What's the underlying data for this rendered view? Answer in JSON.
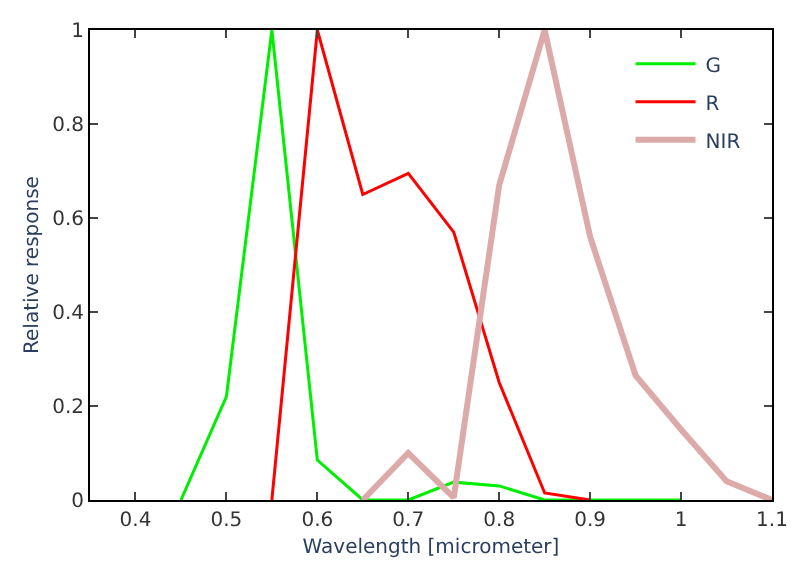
{
  "chart_data": {
    "type": "line",
    "xlabel": "Wavelength [micrometer]",
    "ylabel": "Relative response",
    "xlim": [
      0.35,
      1.1
    ],
    "ylim": [
      0,
      1
    ],
    "xticks": [
      0.4,
      0.5,
      0.6,
      0.7,
      0.8,
      0.9,
      1,
      1.1
    ],
    "yticks": [
      0,
      0.2,
      0.4,
      0.6,
      0.8,
      1
    ],
    "legend": "top right",
    "marker": "none",
    "line_style": "solid",
    "series": [
      {
        "name": "G",
        "color": "#00ee00",
        "x": [
          0.45,
          0.5,
          0.55,
          0.6,
          0.65,
          0.7,
          0.75,
          0.8,
          0.85,
          0.9,
          1.0
        ],
        "values": [
          0,
          0.22,
          1,
          0.085,
          0,
          0,
          0.038,
          0.03,
          0,
          0,
          0
        ]
      },
      {
        "name": "R",
        "color": "#ff0000",
        "x": [
          0.55,
          0.6,
          0.65,
          0.7,
          0.75,
          0.8,
          0.85,
          0.9
        ],
        "values": [
          0,
          1,
          0.65,
          0.695,
          0.57,
          0.25,
          0.015,
          0
        ]
      },
      {
        "name": "NIR",
        "color": "#ddaaaa",
        "x": [
          0.65,
          0.7,
          0.75,
          0.8,
          0.85,
          0.9,
          0.95,
          1.0,
          1.05,
          1.1
        ],
        "values": [
          0,
          0.1,
          0.005,
          0.67,
          1,
          0.56,
          0.265,
          0.15,
          0.04,
          0
        ]
      }
    ]
  }
}
